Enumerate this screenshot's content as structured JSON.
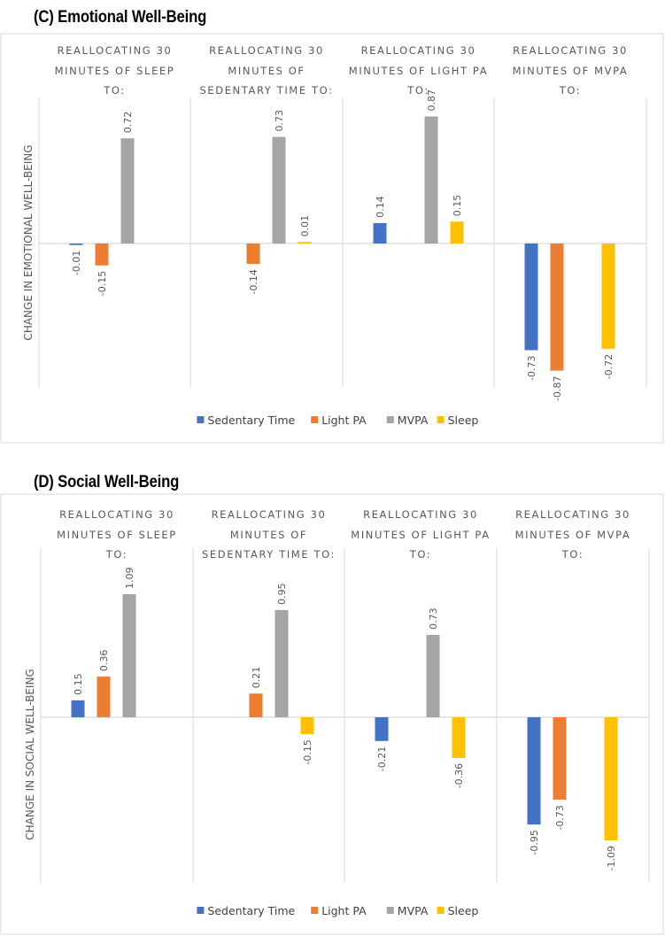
{
  "chart_data": [
    {
      "type": "bar",
      "title": "(C) Emotional Well-Being",
      "ylabel": "CHANGE IN EMOTIONAL WELL-BEING",
      "panels": [
        "REALLOCATING 30 MINUTES OF SLEEP TO:",
        "REALLOCATING 30 MINUTES OF SEDENTARY TIME TO:",
        "REALLOCATING 30 MINUTES OF LIGHT PA TO:",
        "REALLOCATING 30 MINUTES OF MVPA TO:"
      ],
      "panel_lines": [
        [
          "REALLOCATING 30",
          "MINUTES OF SLEEP",
          "TO:"
        ],
        [
          "REALLOCATING 30",
          "MINUTES OF",
          "SEDENTARY TIME TO:"
        ],
        [
          "REALLOCATING 30",
          "MINUTES OF LIGHT PA",
          "TO:"
        ],
        [
          "REALLOCATING 30",
          "MINUTES OF MVPA",
          "TO:"
        ]
      ],
      "series": [
        {
          "name": "Sedentary Time",
          "color": "#4472C4",
          "values": [
            -0.01,
            null,
            0.14,
            -0.73
          ]
        },
        {
          "name": "Light PA",
          "color": "#ED7D31",
          "values": [
            -0.15,
            -0.14,
            null,
            -0.87
          ]
        },
        {
          "name": "MVPA",
          "color": "#A5A5A5",
          "values": [
            0.72,
            0.73,
            0.87,
            null
          ]
        },
        {
          "name": "Sleep",
          "color": "#FFC000",
          "values": [
            null,
            0.01,
            0.15,
            -0.72
          ]
        }
      ],
      "labels": [
        [
          "-0.01",
          "-0.15",
          "0.72",
          ""
        ],
        [
          "",
          "-0.14",
          "0.73",
          "0.01"
        ],
        [
          "0.14",
          "",
          "0.87",
          "0.15"
        ],
        [
          "-0.73",
          "-0.87",
          "",
          "-0.72"
        ]
      ],
      "legend_position": "bottom",
      "grid": false
    },
    {
      "type": "bar",
      "title": "(D) Social Well-Being",
      "ylabel": "CHANGE IN SOCIAL WELL-BEING",
      "panels": [
        "REALLOCATING 30 MINUTES OF SLEEP TO:",
        "REALLOCATING 30 MINUTES OF SEDENTARY TIME TO:",
        "REALLOCATING 30 MINUTES OF LIGHT PA TO:",
        "REALLOCATING 30 MINUTES OF MVPA TO:"
      ],
      "panel_lines": [
        [
          "REALLOCATING 30",
          "MINUTES OF SLEEP",
          "TO:"
        ],
        [
          "REALLOCATING 30",
          "MINUTES OF",
          "SEDENTARY TIME TO:"
        ],
        [
          "REALLOCATING 30",
          "MINUTES OF LIGHT PA",
          "TO:"
        ],
        [
          "REALLOCATING 30",
          "MINUTES OF MVPA",
          "TO:"
        ]
      ],
      "series": [
        {
          "name": "Sedentary Time",
          "color": "#4472C4",
          "values": [
            0.15,
            null,
            -0.21,
            -0.95
          ]
        },
        {
          "name": "Light PA",
          "color": "#ED7D31",
          "values": [
            0.36,
            0.21,
            null,
            -0.73
          ]
        },
        {
          "name": "MVPA",
          "color": "#A5A5A5",
          "values": [
            1.09,
            0.95,
            0.73,
            null
          ]
        },
        {
          "name": "Sleep",
          "color": "#FFC000",
          "values": [
            null,
            -0.15,
            -0.36,
            -1.09
          ]
        }
      ],
      "labels": [
        [
          "0.15",
          "0.36",
          "1.09",
          ""
        ],
        [
          "",
          "0.21",
          "0.95",
          "-0.15"
        ],
        [
          "-0.21",
          "",
          "0.73",
          "-0.36"
        ],
        [
          "-0.95",
          "-0.73",
          "",
          "-1.09"
        ]
      ],
      "legend_position": "bottom",
      "grid": false
    }
  ]
}
